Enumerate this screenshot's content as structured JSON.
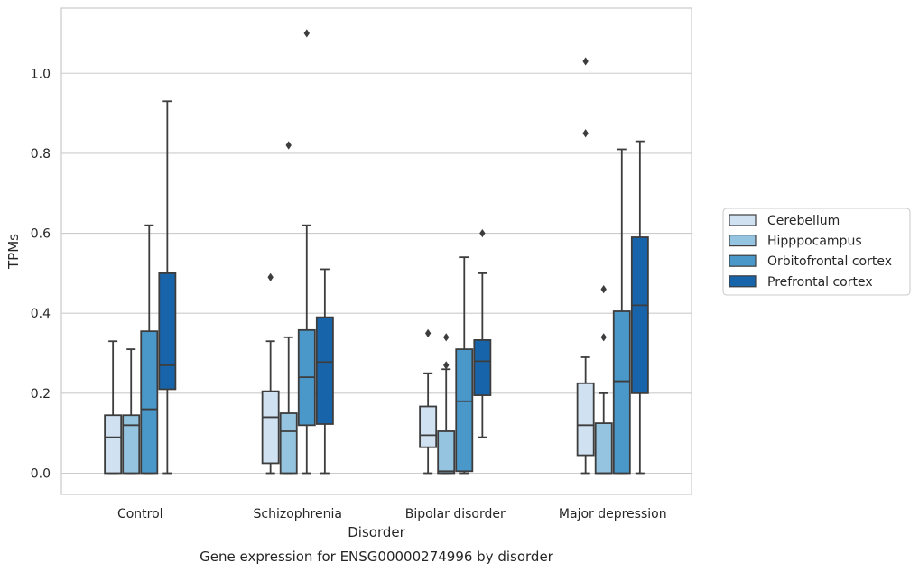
{
  "chart_data": {
    "type": "box",
    "caption": "Gene expression for ENSG00000274996 by disorder",
    "xlabel": "Disorder",
    "ylabel": "TPMs",
    "ylim": [
      -0.053,
      1.163
    ],
    "yticks": [
      0.0,
      0.2,
      0.4,
      0.6,
      0.8,
      1.0
    ],
    "ytick_labels": [
      "0.0",
      "0.2",
      "0.4",
      "0.6",
      "0.8",
      "1.0"
    ],
    "grid": true,
    "legend_position": "right, outside plot",
    "categories": [
      "Control",
      "Schizophrenia",
      "Bipolar disorder",
      "Major depression"
    ],
    "series": [
      {
        "name": "Cerebellum",
        "color": "#d0e1f2",
        "boxes": [
          {
            "whislo": 0.0,
            "q1": 0.0,
            "med": 0.09,
            "q3": 0.145,
            "whishi": 0.33,
            "fliers": []
          },
          {
            "whislo": 0.0,
            "q1": 0.025,
            "med": 0.14,
            "q3": 0.205,
            "whishi": 0.33,
            "fliers": [
              0.49
            ]
          },
          {
            "whislo": 0.0,
            "q1": 0.065,
            "med": 0.095,
            "q3": 0.167,
            "whishi": 0.25,
            "fliers": [
              0.35
            ]
          },
          {
            "whislo": 0.0,
            "q1": 0.045,
            "med": 0.12,
            "q3": 0.225,
            "whishi": 0.29,
            "fliers": [
              0.85,
              1.03
            ]
          }
        ]
      },
      {
        "name": "Hipppocampus",
        "color": "#94c4df",
        "boxes": [
          {
            "whislo": 0.0,
            "q1": 0.0,
            "med": 0.12,
            "q3": 0.145,
            "whishi": 0.31,
            "fliers": []
          },
          {
            "whislo": 0.0,
            "q1": 0.0,
            "med": 0.105,
            "q3": 0.15,
            "whishi": 0.34,
            "fliers": [
              0.82
            ]
          },
          {
            "whislo": 0.0,
            "q1": 0.0,
            "med": 0.005,
            "q3": 0.105,
            "whishi": 0.26,
            "fliers": [
              0.27,
              0.34
            ]
          },
          {
            "whislo": 0.0,
            "q1": 0.0,
            "med": 0.0,
            "q3": 0.125,
            "whishi": 0.2,
            "fliers": [
              0.34,
              0.46
            ]
          }
        ]
      },
      {
        "name": "Orbitofrontal cortex",
        "color": "#4a98c9",
        "boxes": [
          {
            "whislo": 0.0,
            "q1": 0.0,
            "med": 0.16,
            "q3": 0.355,
            "whishi": 0.62,
            "fliers": []
          },
          {
            "whislo": 0.0,
            "q1": 0.12,
            "med": 0.24,
            "q3": 0.358,
            "whishi": 0.62,
            "fliers": [
              1.1
            ]
          },
          {
            "whislo": 0.0,
            "q1": 0.005,
            "med": 0.18,
            "q3": 0.31,
            "whishi": 0.54,
            "fliers": []
          },
          {
            "whislo": 0.0,
            "q1": 0.0,
            "med": 0.23,
            "q3": 0.405,
            "whishi": 0.81,
            "fliers": []
          }
        ]
      },
      {
        "name": "Prefrontal cortex",
        "color": "#1764ab",
        "boxes": [
          {
            "whislo": 0.0,
            "q1": 0.21,
            "med": 0.27,
            "q3": 0.5,
            "whishi": 0.93,
            "fliers": []
          },
          {
            "whislo": 0.0,
            "q1": 0.123,
            "med": 0.278,
            "q3": 0.39,
            "whishi": 0.51,
            "fliers": []
          },
          {
            "whislo": 0.09,
            "q1": 0.195,
            "med": 0.28,
            "q3": 0.333,
            "whishi": 0.5,
            "fliers": [
              0.6
            ]
          },
          {
            "whislo": 0.0,
            "q1": 0.2,
            "med": 0.42,
            "q3": 0.59,
            "whishi": 0.83,
            "fliers": []
          }
        ]
      }
    ]
  }
}
